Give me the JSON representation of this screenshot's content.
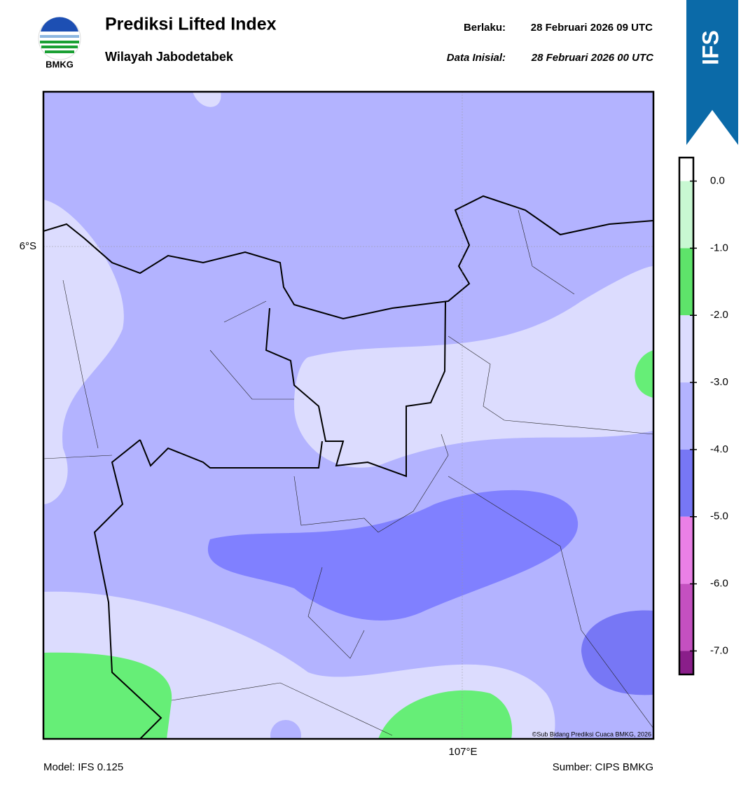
{
  "header": {
    "logo_text": "BMKG",
    "title": "Prediksi Lifted Index",
    "subtitle": "Wilayah Jabodetabek",
    "valid_label": "Berlaku:",
    "valid_time": "28 Februari 2026 09 UTC",
    "init_label": "Data Inisial:",
    "init_time": "28 Februari 2026 00 UTC",
    "badge": "IFS"
  },
  "map": {
    "lat_label": "6°S",
    "lon_label": "107°E",
    "credit": "©Sub Bidang Prediksi Cuaca BMKG, 2026"
  },
  "colorbar": {
    "range": [
      0.35,
      -7.35
    ],
    "ticks": [
      {
        "value": 0,
        "label": "0.0"
      },
      {
        "value": -1,
        "label": "-1.0"
      },
      {
        "value": -2,
        "label": "-2.0"
      },
      {
        "value": -3,
        "label": "-3.0"
      },
      {
        "value": -4,
        "label": "-4.0"
      },
      {
        "value": -5,
        "label": "-5.0"
      },
      {
        "value": -6,
        "label": "-6.0"
      },
      {
        "value": -7,
        "label": "-7.0"
      }
    ],
    "bands": [
      {
        "from": 0.35,
        "to": 0,
        "color": "#ffffff"
      },
      {
        "from": 0,
        "to": -1,
        "color": "#c8f8d2"
      },
      {
        "from": -1,
        "to": -2,
        "color": "#5ee36a"
      },
      {
        "from": -2,
        "to": -3,
        "color": "#dcdcfe"
      },
      {
        "from": -3,
        "to": -4,
        "color": "#b3b3ff"
      },
      {
        "from": -4,
        "to": -5,
        "color": "#7777f5"
      },
      {
        "from": -5,
        "to": -6,
        "color": "#ea80e6"
      },
      {
        "from": -6,
        "to": -7,
        "color": "#c450c0"
      },
      {
        "from": -7,
        "to": -7.35,
        "color": "#8a1e8a"
      }
    ]
  },
  "footer": {
    "model": "Model: IFS 0.125",
    "source": "Sumber: CIPS BMKG"
  }
}
